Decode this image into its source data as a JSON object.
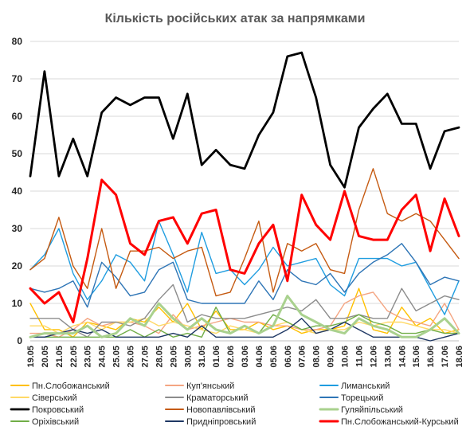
{
  "chart_data": {
    "type": "line",
    "title": "Кількість російських атак за напрямками",
    "xlabel": "",
    "ylabel": "",
    "ylim": [
      0,
      80
    ],
    "yticks": [
      0,
      10,
      20,
      30,
      40,
      50,
      60,
      70,
      80
    ],
    "grid": true,
    "legend_position": "bottom",
    "x": [
      "19.05",
      "20.05",
      "21.05",
      "22.05",
      "23.05",
      "24.05",
      "25.05",
      "26.05",
      "27.05",
      "28.05",
      "29.05",
      "30.05",
      "31.05",
      "01.06",
      "02.06",
      "03.06",
      "04.06",
      "05.06",
      "06.06",
      "07.06",
      "08.06",
      "09.06",
      "10.06",
      "11.06",
      "12.06",
      "13.06",
      "14.06",
      "15.06",
      "16.06",
      "17.06",
      "18.06"
    ],
    "x_label_every": 1,
    "series": [
      {
        "name": "Пн.Слобожанський",
        "color": "#ffc000",
        "width": 1.4,
        "values": [
          10,
          3,
          3,
          1,
          5,
          4,
          3,
          6,
          5,
          9,
          5,
          10,
          3,
          8,
          3,
          3,
          5,
          3,
          4,
          2,
          3,
          3,
          4,
          14,
          3,
          2,
          9,
          4,
          6,
          2,
          3
        ]
      },
      {
        "name": "Куп'янський",
        "color": "#f4a582",
        "width": 1.4,
        "values": [
          2,
          2,
          1,
          3,
          6,
          4,
          5,
          5,
          4,
          2,
          7,
          3,
          4,
          5,
          6,
          5,
          5,
          4,
          4,
          3,
          3,
          4,
          10,
          12,
          13,
          8,
          6,
          5,
          4,
          10,
          3
        ]
      },
      {
        "name": "Лиманський",
        "color": "#1f9de0",
        "width": 1.4,
        "values": [
          19,
          23,
          30,
          18,
          11,
          16,
          23,
          21,
          16,
          32,
          23,
          13,
          29,
          18,
          19,
          15,
          19,
          25,
          20,
          21,
          22,
          15,
          12,
          22,
          22,
          22,
          20,
          21,
          14,
          7,
          16
        ]
      },
      {
        "name": "Сіверський",
        "color": "#ffd966",
        "width": 1.4,
        "values": [
          4,
          4,
          2,
          4,
          5,
          3,
          5,
          5,
          6,
          4,
          5,
          4,
          3,
          2,
          4,
          3,
          2,
          4,
          5,
          3,
          2,
          3,
          3,
          5,
          4,
          5,
          5,
          4,
          3,
          3,
          2
        ]
      },
      {
        "name": "Краматорський",
        "color": "#8c8c8c",
        "width": 1.4,
        "values": [
          6,
          6,
          6,
          3,
          1,
          5,
          5,
          4,
          6,
          11,
          15,
          5,
          7,
          6,
          6,
          6,
          7,
          8,
          9,
          8,
          11,
          6,
          6,
          7,
          6,
          6,
          14,
          8,
          10,
          12,
          11
        ]
      },
      {
        "name": "Торецький",
        "color": "#2e75b6",
        "width": 1.4,
        "values": [
          14,
          13,
          14,
          16,
          9,
          21,
          17,
          12,
          13,
          19,
          21,
          11,
          10,
          10,
          10,
          10,
          16,
          11,
          19,
          16,
          15,
          18,
          13,
          18,
          21,
          23,
          26,
          21,
          15,
          17,
          16
        ]
      },
      {
        "name": "Покровський",
        "color": "#000000",
        "width": 2.8,
        "values": [
          44,
          72,
          44,
          54,
          44,
          61,
          65,
          63,
          65,
          65,
          54,
          66,
          47,
          51,
          47,
          46,
          55,
          61,
          76,
          77,
          65,
          47,
          41,
          57,
          62,
          66,
          58,
          58,
          46,
          56,
          57
        ]
      },
      {
        "name": "Новопавлівський",
        "color": "#c55a11",
        "width": 1.4,
        "values": [
          19,
          22,
          33,
          20,
          14,
          30,
          14,
          24,
          24,
          25,
          22,
          24,
          25,
          12,
          13,
          22,
          32,
          13,
          26,
          24,
          26,
          19,
          18,
          35,
          46,
          34,
          32,
          34,
          32,
          27,
          22
        ]
      },
      {
        "name": "Гуляйпільський",
        "color": "#a9d18e",
        "width": 3,
        "values": [
          1,
          2,
          2,
          2,
          4,
          1,
          2,
          6,
          4,
          10,
          6,
          3,
          6,
          3,
          2,
          4,
          2,
          4,
          12,
          7,
          5,
          3,
          2,
          6,
          4,
          3,
          1,
          1,
          3,
          6,
          2
        ]
      },
      {
        "name": "Оріхівський",
        "color": "#70ad47",
        "width": 1.4,
        "values": [
          1,
          1,
          1,
          1,
          1,
          1,
          1,
          3,
          1,
          3,
          1,
          2,
          1,
          9,
          2,
          4,
          2,
          7,
          5,
          3,
          4,
          4,
          5,
          7,
          5,
          4,
          2,
          2,
          3,
          2,
          2
        ]
      },
      {
        "name": "Придніпровський",
        "color": "#1f3864",
        "width": 1.4,
        "values": [
          1,
          1,
          2,
          3,
          2,
          3,
          1,
          1,
          1,
          1,
          2,
          1,
          4,
          1,
          1,
          1,
          1,
          1,
          3,
          6,
          2,
          3,
          5,
          3,
          1,
          1,
          1,
          1,
          0,
          1,
          2
        ]
      },
      {
        "name": "Пн.Слобожанський-Курський",
        "color": "#ff0000",
        "width": 3,
        "values": [
          14,
          10,
          13,
          5,
          22,
          43,
          39,
          26,
          23,
          32,
          33,
          26,
          34,
          35,
          19,
          18,
          26,
          31,
          16,
          39,
          31,
          27,
          40,
          28,
          27,
          27,
          35,
          39,
          24,
          38,
          28
        ]
      }
    ]
  }
}
